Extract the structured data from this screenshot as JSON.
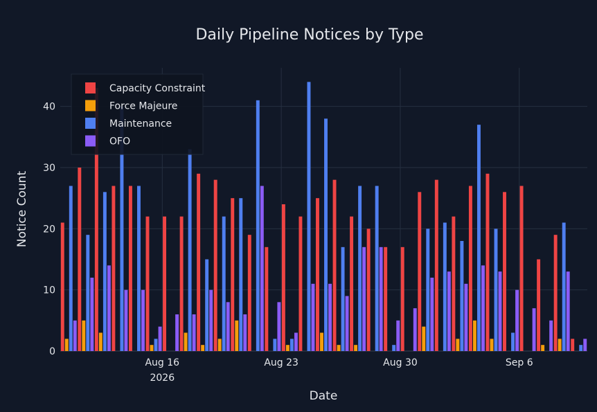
{
  "chart_data": {
    "type": "bar",
    "title": "Daily Pipeline Notices by Type",
    "xlabel": "Date",
    "ylabel": "Notice Count",
    "ylim": [
      0,
      46.3
    ],
    "x_start": "2026-08-10",
    "x_end": "2026-09-09",
    "dates": [
      "Aug 10",
      "Aug 11",
      "Aug 12",
      "Aug 13",
      "Aug 14",
      "Aug 15",
      "Aug 16",
      "Aug 17",
      "Aug 18",
      "Aug 19",
      "Aug 20",
      "Aug 21",
      "Aug 22",
      "Aug 23",
      "Aug 24",
      "Aug 25",
      "Aug 26",
      "Aug 27",
      "Aug 28",
      "Aug 29",
      "Aug 30",
      "Aug 31",
      "Sep 1",
      "Sep 2",
      "Sep 3",
      "Sep 4",
      "Sep 5",
      "Sep 6",
      "Sep 7",
      "Sep 8",
      "Sep 9"
    ],
    "x_ticks": [
      {
        "date": "2026-08-16",
        "label": "Aug 16",
        "sublabel": "2026"
      },
      {
        "date": "2026-08-23",
        "label": "Aug 23",
        "sublabel": ""
      },
      {
        "date": "2026-08-30",
        "label": "Aug 30",
        "sublabel": ""
      },
      {
        "date": "2026-09-06",
        "label": "Sep 6",
        "sublabel": ""
      }
    ],
    "y_ticks": [
      0,
      10,
      20,
      30,
      40
    ],
    "grid": true,
    "legend_position": "top-left",
    "series": [
      {
        "name": "Capacity Constraint",
        "color": "#ef4444",
        "values": [
          21,
          30,
          43,
          27,
          27,
          22,
          22,
          22,
          29,
          28,
          25,
          19,
          17,
          24,
          22,
          25,
          28,
          22,
          20,
          17,
          17,
          26,
          28,
          22,
          27,
          29,
          26,
          27,
          15,
          19,
          2
        ]
      },
      {
        "name": "Force Majeure",
        "color": "#f59e0b",
        "values": [
          2,
          5,
          3,
          0,
          0,
          1,
          0,
          3,
          1,
          2,
          5,
          0,
          0,
          1,
          0,
          3,
          1,
          1,
          0,
          0,
          0,
          4,
          0,
          2,
          5,
          2,
          0,
          0,
          1,
          2,
          0
        ]
      },
      {
        "name": "Maintenance",
        "color": "#4f7ff0",
        "values": [
          27,
          19,
          26,
          40,
          27,
          2,
          0,
          33,
          15,
          22,
          25,
          41,
          2,
          2,
          44,
          38,
          17,
          27,
          27,
          1,
          0,
          20,
          21,
          18,
          37,
          20,
          3,
          0,
          0,
          21,
          1
        ]
      },
      {
        "name": "OFO",
        "color": "#8b5cf6",
        "values": [
          5,
          12,
          14,
          10,
          10,
          4,
          6,
          6,
          10,
          8,
          6,
          27,
          8,
          3,
          11,
          11,
          9,
          17,
          17,
          5,
          7,
          12,
          13,
          11,
          14,
          13,
          10,
          7,
          5,
          13,
          2
        ]
      }
    ]
  }
}
